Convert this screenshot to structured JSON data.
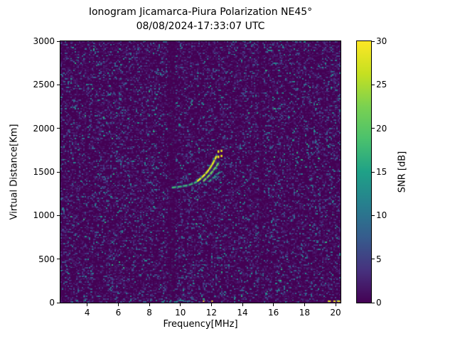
{
  "chart_data": {
    "type": "heatmap",
    "title": "Ionogram Jicamarca-Piura Polarization NE45°",
    "subtitle": "08/08/2024-17:33:07 UTC",
    "xlabel": "Frequency[MHz]",
    "ylabel": "Virtual Distance[Km]",
    "xlim": [
      2.27,
      20.32
    ],
    "ylim": [
      0,
      3000
    ],
    "xticks": [
      4,
      6,
      8,
      10,
      12,
      14,
      16,
      18,
      20
    ],
    "yticks": [
      0,
      500,
      1000,
      1500,
      2000,
      2500,
      3000
    ],
    "grid": false,
    "colorbar": {
      "label": "SNR [dB]",
      "min": 0,
      "max": 30,
      "ticks": [
        0,
        5,
        10,
        15,
        20,
        25,
        30
      ],
      "colormap": "viridis",
      "stops": [
        {
          "pos": 0.0,
          "color": "#440154"
        },
        {
          "pos": 0.125,
          "color": "#46327e"
        },
        {
          "pos": 0.25,
          "color": "#365c8d"
        },
        {
          "pos": 0.375,
          "color": "#277f8e"
        },
        {
          "pos": 0.5,
          "color": "#1fa187"
        },
        {
          "pos": 0.625,
          "color": "#4ac16d"
        },
        {
          "pos": 0.75,
          "color": "#7ad151"
        },
        {
          "pos": 0.875,
          "color": "#c5e021"
        },
        {
          "pos": 1.0,
          "color": "#fde725"
        }
      ]
    },
    "noise": {
      "seed": 1337,
      "cell_size": 2,
      "background": "#440154",
      "speckles": [
        {
          "color": "#470e61",
          "weight": 0.18
        },
        {
          "color": "#481d6f",
          "weight": 0.09
        },
        {
          "color": "#46307e",
          "weight": 0.06
        },
        {
          "color": "#3f4b8a",
          "weight": 0.04
        },
        {
          "color": "#33628d",
          "weight": 0.027
        },
        {
          "color": "#2a788e",
          "weight": 0.016
        },
        {
          "color": "#21918c",
          "weight": 0.006
        },
        {
          "color": "#2ab07f",
          "weight": 0.0015
        }
      ]
    },
    "quiet_bands": [
      {
        "freq_range": [
          9.2,
          9.65
        ]
      },
      {
        "freq_range": [
          15.05,
          15.3
        ]
      }
    ],
    "echo_trace": {
      "branches": [
        {
          "name": "tail",
          "color": "#3fbc73",
          "width": 2,
          "dash": [
            4,
            4
          ],
          "points": [
            [
              9.5,
              1320
            ],
            [
              9.85,
              1328
            ],
            [
              10.2,
              1337
            ],
            [
              10.55,
              1350
            ],
            [
              10.9,
              1372
            ],
            [
              11.08,
              1392
            ]
          ]
        },
        {
          "name": "o-mode-main",
          "color": "#d2e21b",
          "width": 2.5,
          "dash": [
            5,
            3
          ],
          "points": [
            [
              11.12,
              1398
            ],
            [
              11.35,
              1432
            ],
            [
              11.58,
              1470
            ],
            [
              11.78,
              1512
            ],
            [
              11.95,
              1556
            ],
            [
              12.1,
              1600
            ],
            [
              12.22,
              1642
            ],
            [
              12.32,
              1678
            ]
          ]
        },
        {
          "name": "x-mode",
          "color": "#7ad151",
          "width": 2,
          "dash": [
            4,
            3
          ],
          "points": [
            [
              11.5,
              1398
            ],
            [
              11.72,
              1435
            ],
            [
              11.93,
              1475
            ],
            [
              12.13,
              1520
            ],
            [
              12.32,
              1566
            ],
            [
              12.48,
              1610
            ]
          ]
        },
        {
          "name": "faint-outer",
          "color": "#2fb47c",
          "width": 1.5,
          "dash": [
            3,
            5
          ],
          "points": [
            [
              11.85,
              1390
            ],
            [
              12.1,
              1425
            ],
            [
              12.35,
              1465
            ],
            [
              12.55,
              1502
            ]
          ]
        }
      ],
      "vertical_dashes": [
        {
          "freq": 12.45,
          "dist_range": [
            1658,
            1748
          ],
          "color": "#e8e419"
        },
        {
          "freq": 12.65,
          "dist_range": [
            1670,
            1755
          ],
          "color": "#e8e419"
        }
      ],
      "halo_dots": [
        [
          10.7,
          1295
        ],
        [
          11.05,
          1425
        ],
        [
          11.5,
          1368
        ],
        [
          12.05,
          1445
        ],
        [
          12.42,
          1452
        ],
        [
          12.62,
          1510
        ],
        [
          12.85,
          1562
        ],
        [
          12.3,
          1700
        ],
        [
          11.3,
          1460
        ]
      ]
    },
    "bottom_artifacts": {
      "teal_cluster": {
        "freq_range": [
          8.8,
          10.6
        ],
        "dist_max": 25
      },
      "yellow_segments": [
        [
          19.5,
          19.7
        ],
        [
          19.85,
          20.0
        ],
        [
          20.1,
          20.3
        ]
      ],
      "yellow_points": [
        11.45,
        12.0
      ]
    }
  }
}
